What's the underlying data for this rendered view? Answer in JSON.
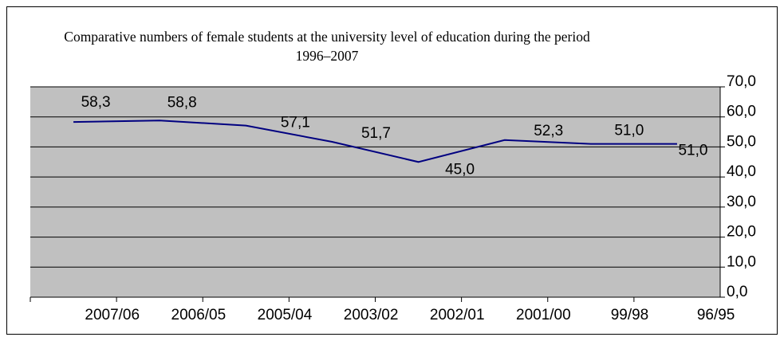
{
  "chart_data": {
    "type": "line",
    "title": "Comparative numbers of female students at the university level of education during the period 1996–2007",
    "categories": [
      "2007/06",
      "2006/05",
      "2005/04",
      "2003/02",
      "2002/01",
      "2001/00",
      "99/98",
      "96/95"
    ],
    "series": [
      {
        "name": null,
        "color": "#000080",
        "values": [
          58.3,
          58.8,
          57.1,
          51.7,
          45.0,
          52.3,
          51.0,
          51.0
        ],
        "value_labels": [
          "58,3",
          "58,8",
          "57,1",
          "51,7",
          "45,0",
          "52,3",
          "51,0",
          "51,0"
        ]
      }
    ],
    "ylim": [
      0,
      70
    ],
    "yticks": [
      {
        "value": 0,
        "label": "0,0"
      },
      {
        "value": 10,
        "label": "10,0"
      },
      {
        "value": 20,
        "label": "20,0"
      },
      {
        "value": 30,
        "label": "30,0"
      },
      {
        "value": 40,
        "label": "40,0"
      },
      {
        "value": 50,
        "label": "50,0"
      },
      {
        "value": 60,
        "label": "60,0"
      },
      {
        "value": 70,
        "label": "70,0"
      }
    ],
    "grid": true,
    "plot_background": "#c0c0c0"
  }
}
